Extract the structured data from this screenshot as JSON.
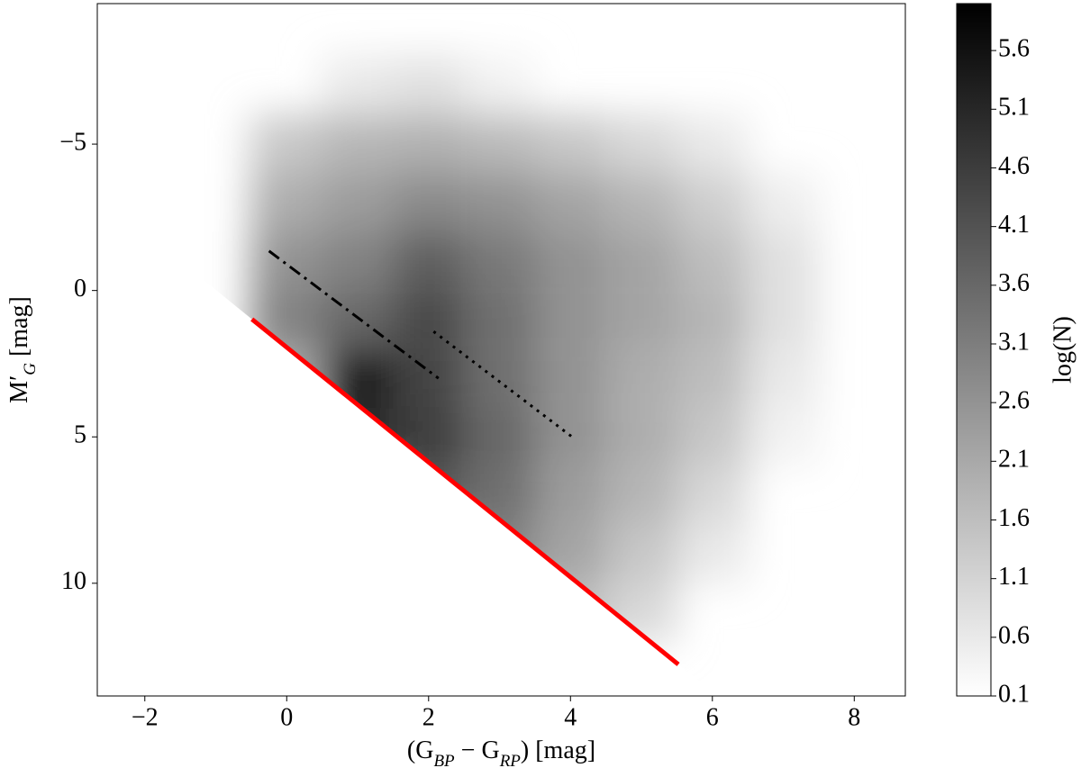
{
  "chart_data": {
    "type": "density",
    "xlabel": "(G_BP − G_RP) [mag]",
    "ylabel": "M′_G [mag]",
    "xlim": [
      -2.67,
      8.72
    ],
    "ylim": [
      13.85,
      -9.8
    ],
    "xticks": [
      {
        "value": -2,
        "label": "−2"
      },
      0,
      2,
      4,
      6,
      8
    ],
    "yticks": [
      {
        "value": -5,
        "label": "−5"
      },
      0,
      5,
      10
    ],
    "density": {
      "x_edges": [
        -0.5,
        0.5,
        1.5,
        2.5,
        3.5,
        4.5,
        5.5,
        6.5,
        7.5
      ],
      "y_edges": [
        -8,
        -6,
        -4,
        -2,
        0,
        2,
        4,
        6,
        8,
        10,
        12
      ],
      "values": [
        [
          null,
          0.6,
          0.8,
          0.4,
          null,
          null,
          null,
          null
        ],
        [
          1.4,
          1.8,
          1.9,
          1.7,
          1.4,
          1.0,
          0.6,
          null
        ],
        [
          2.0,
          2.4,
          2.8,
          2.6,
          2.2,
          1.8,
          1.2,
          0.5
        ],
        [
          2.6,
          3.0,
          3.8,
          3.2,
          2.6,
          2.2,
          1.6,
          0.8
        ],
        [
          3.0,
          3.6,
          4.3,
          3.4,
          2.6,
          2.2,
          1.8,
          0.8
        ],
        [
          2.0,
          5.5,
          4.4,
          3.4,
          2.6,
          2.0,
          1.6,
          0.6
        ],
        [
          null,
          5.0,
          4.6,
          3.6,
          2.6,
          2.0,
          1.4,
          0.4
        ],
        [
          null,
          null,
          4.0,
          3.4,
          2.4,
          1.8,
          1.0,
          null
        ],
        [
          null,
          null,
          null,
          3.0,
          2.2,
          1.4,
          0.6,
          null
        ],
        [
          null,
          null,
          null,
          null,
          1.6,
          1.0,
          null,
          null
        ]
      ]
    },
    "lines": [
      {
        "x": [
          -0.49,
          5.52
        ],
        "y": [
          0.98,
          12.77
        ],
        "color": "#ff0000",
        "style": "solid"
      },
      {
        "x": [
          -0.25,
          2.14
        ],
        "y": [
          -1.35,
          3.0
        ],
        "color": "#000000",
        "style": "dashdot"
      },
      {
        "x": [
          2.07,
          4.05
        ],
        "y": [
          1.4,
          5.05
        ],
        "color": "#000000",
        "style": "dotted"
      }
    ],
    "colorbar": {
      "label": "log(N)",
      "lim": [
        0.1,
        6.0
      ],
      "ticks": [
        0.1,
        0.6,
        1.1,
        1.6,
        2.1,
        2.6,
        3.1,
        3.6,
        4.1,
        4.6,
        5.1,
        5.6
      ]
    }
  }
}
